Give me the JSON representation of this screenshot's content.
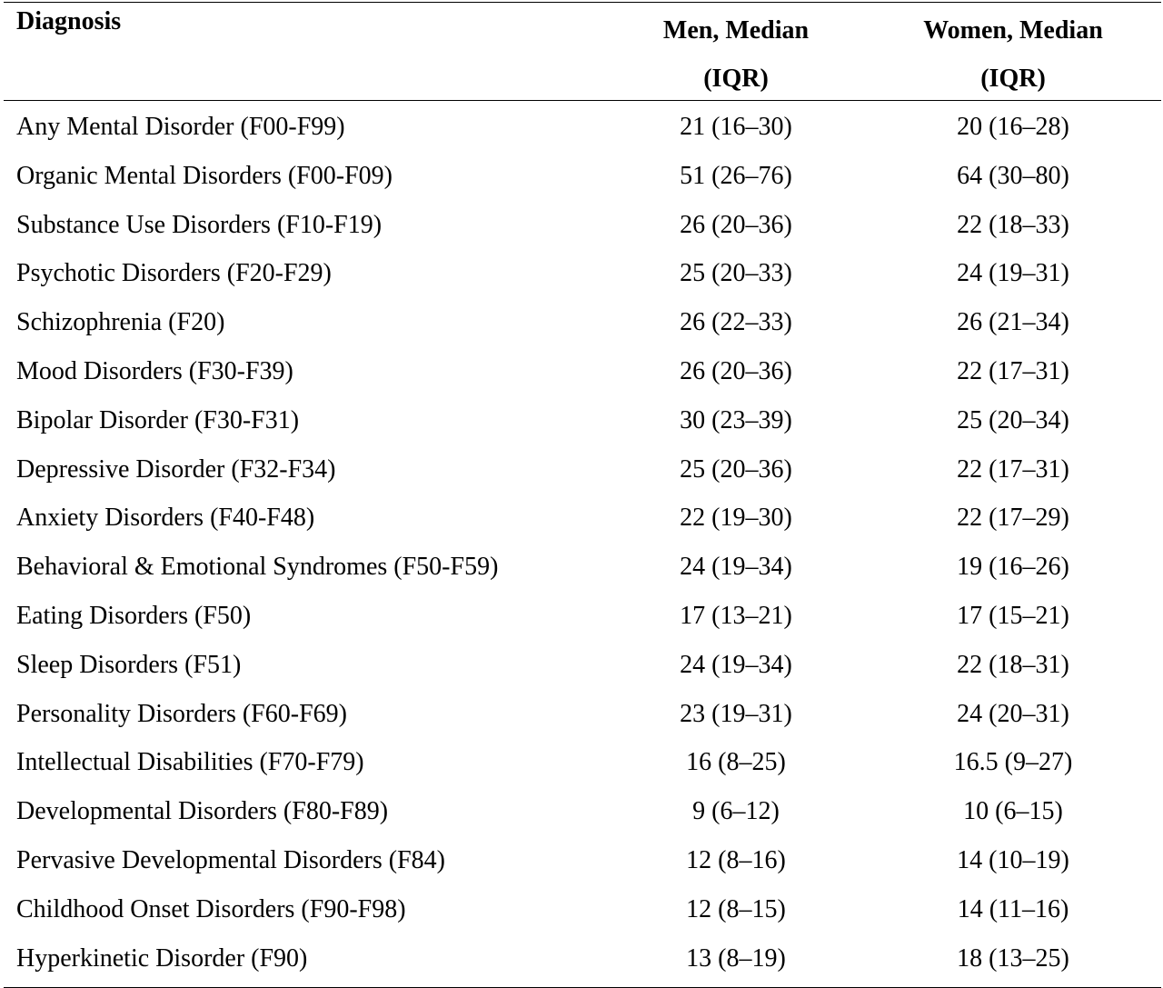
{
  "table": {
    "headers": {
      "diagnosis": "Diagnosis",
      "men_line1": "Men, Median",
      "men_line2": "(IQR)",
      "women_line1": "Women, Median",
      "women_line2": "(IQR)"
    },
    "rows": [
      {
        "diagnosis": "Any Mental Disorder (F00-F99)",
        "men": "21 (16–30)",
        "women": "20 (16–28)"
      },
      {
        "diagnosis": "Organic Mental Disorders (F00-F09)",
        "men": "51 (26–76)",
        "women": "64 (30–80)"
      },
      {
        "diagnosis": "Substance Use Disorders (F10-F19)",
        "men": "26 (20–36)",
        "women": "22 (18–33)"
      },
      {
        "diagnosis": "Psychotic Disorders (F20-F29)",
        "men": "25 (20–33)",
        "women": "24 (19–31)"
      },
      {
        "diagnosis": "Schizophrenia (F20)",
        "men": "26 (22–33)",
        "women": "26 (21–34)"
      },
      {
        "diagnosis": "Mood Disorders (F30-F39)",
        "men": "26 (20–36)",
        "women": "22 (17–31)"
      },
      {
        "diagnosis": "Bipolar Disorder (F30-F31)",
        "men": "30 (23–39)",
        "women": "25 (20–34)"
      },
      {
        "diagnosis": "Depressive Disorder (F32-F34)",
        "men": "25 (20–36)",
        "women": "22 (17–31)"
      },
      {
        "diagnosis": "Anxiety Disorders (F40-F48)",
        "men": "22 (19–30)",
        "women": "22 (17–29)"
      },
      {
        "diagnosis": "Behavioral & Emotional Syndromes (F50-F59)",
        "men": "24 (19–34)",
        "women": "19 (16–26)"
      },
      {
        "diagnosis": "Eating Disorders (F50)",
        "men": "17 (13–21)",
        "women": "17 (15–21)"
      },
      {
        "diagnosis": "Sleep Disorders (F51)",
        "men": "24 (19–34)",
        "women": "22 (18–31)"
      },
      {
        "diagnosis": "Personality Disorders (F60-F69)",
        "men": "23 (19–31)",
        "women": "24 (20–31)"
      },
      {
        "diagnosis": "Intellectual Disabilities (F70-F79)",
        "men": "16 (8–25)",
        "women": "16.5 (9–27)"
      },
      {
        "diagnosis": "Developmental Disorders (F80-F89)",
        "men": "9 (6–12)",
        "women": "10 (6–15)"
      },
      {
        "diagnosis": "Pervasive Developmental Disorders (F84)",
        "men": "12 (8–16)",
        "women": "14 (10–19)"
      },
      {
        "diagnosis": "Childhood Onset Disorders (F90-F98)",
        "men": "12 (8–15)",
        "women": "14 (11–16)"
      },
      {
        "diagnosis": "Hyperkinetic Disorder (F90)",
        "men": "13 (8–19)",
        "women": "18 (13–25)"
      }
    ]
  }
}
